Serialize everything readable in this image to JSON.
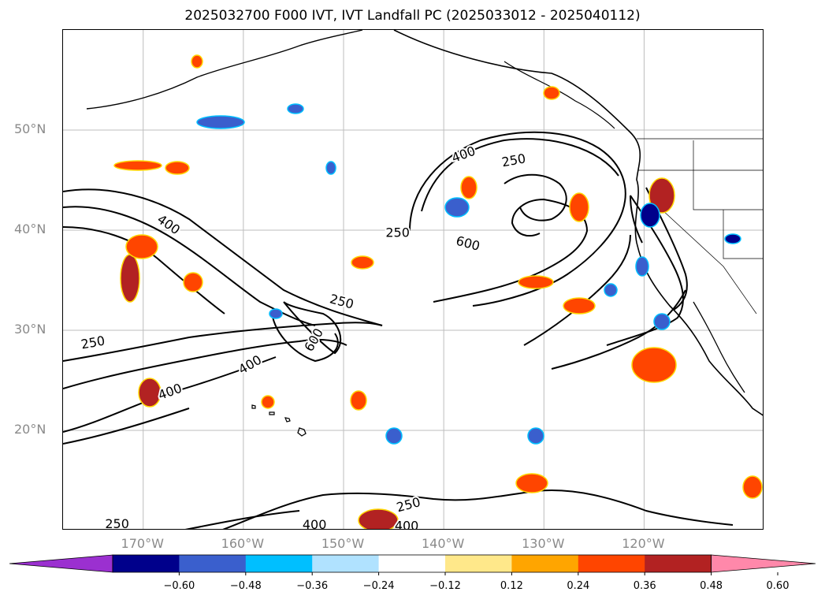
{
  "title": "2025032700 F000 IVT, IVT Landfall PC (2025033012 - 2025040112)",
  "map": {
    "extent": {
      "lon_min": -178,
      "lon_max": -108,
      "lat_min": 10,
      "lat_max": 60
    },
    "lat_ticks": [
      20,
      30,
      40,
      50
    ],
    "lat_labels": [
      "20°N",
      "30°N",
      "40°N",
      "50°N"
    ],
    "lon_ticks": [
      -170,
      -160,
      -150,
      -140,
      -130,
      -120
    ],
    "lon_labels": [
      "170°W",
      "160°W",
      "150°W",
      "140°W",
      "130°W",
      "120°W"
    ],
    "grid": true,
    "contour_labels": [
      {
        "text": "400",
        "lon": -167.5,
        "lat": 40.5,
        "rot": 35
      },
      {
        "text": "250",
        "lon": -150.2,
        "lat": 32.8,
        "rot": 15
      },
      {
        "text": "600",
        "lon": -152.9,
        "lat": 29.0,
        "rot": -60
      },
      {
        "text": "400",
        "lon": -159.3,
        "lat": 26.5,
        "rot": -30
      },
      {
        "text": "400",
        "lon": -167.3,
        "lat": 23.8,
        "rot": -20
      },
      {
        "text": "250",
        "lon": -175.0,
        "lat": 28.7,
        "rot": -10
      },
      {
        "text": "400",
        "lon": -138.0,
        "lat": 47.5,
        "rot": -20
      },
      {
        "text": "250",
        "lon": -133.0,
        "lat": 46.9,
        "rot": -10
      },
      {
        "text": "250",
        "lon": -144.6,
        "lat": 39.7,
        "rot": 0
      },
      {
        "text": "600",
        "lon": -137.6,
        "lat": 38.6,
        "rot": 15
      },
      {
        "text": "250",
        "lon": -172.6,
        "lat": 10.6,
        "rot": 0
      },
      {
        "text": "400",
        "lon": -152.9,
        "lat": 10.5,
        "rot": 0
      },
      {
        "text": "250",
        "lon": -143.5,
        "lat": 12.5,
        "rot": -15
      },
      {
        "text": "400",
        "lon": -143.7,
        "lat": 10.4,
        "rot": 0
      }
    ]
  },
  "colorbar": {
    "ticks": [
      "−0.60",
      "−0.48",
      "−0.36",
      "−0.24",
      "−0.12",
      "0.12",
      "0.24",
      "0.36",
      "0.48",
      "0.60"
    ],
    "colors": [
      "#9b30d0",
      "#00008b",
      "#3a5fcd",
      "#00bfff",
      "#b0e2ff",
      "#ffffff",
      "#ffe88a",
      "#ffa500",
      "#ff4500",
      "#b22222",
      "#ff88aa"
    ]
  }
}
